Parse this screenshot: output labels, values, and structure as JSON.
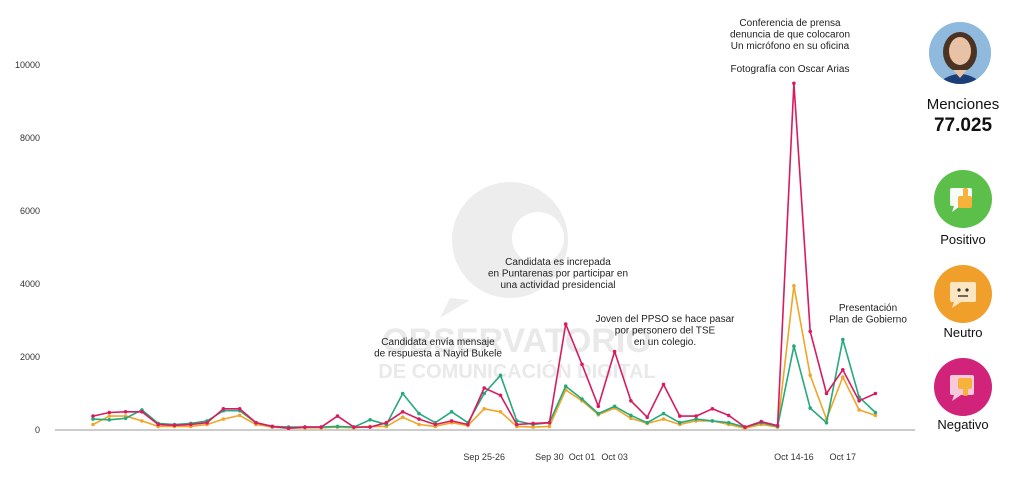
{
  "chart_data": {
    "type": "line",
    "ylim": [
      0,
      11000
    ],
    "yticks": [
      0,
      2000,
      4000,
      6000,
      8000,
      10000
    ],
    "x_labels": [
      {
        "label": "Sep 25-26",
        "index": 24
      },
      {
        "label": "Sep 30",
        "index": 28
      },
      {
        "label": "Oct 01",
        "index": 30
      },
      {
        "label": "Oct 03",
        "index": 32
      },
      {
        "label": "Oct 14-16",
        "index": 43
      },
      {
        "label": "Oct 17",
        "index": 46
      }
    ],
    "series": [
      {
        "color": "#d81b60",
        "values": [
          380,
          480,
          500,
          500,
          150,
          130,
          150,
          200,
          580,
          580,
          200,
          100,
          50,
          80,
          80,
          380,
          80,
          80,
          200,
          500,
          300,
          150,
          250,
          150,
          1150,
          950,
          150,
          180,
          200,
          2900,
          1800,
          650,
          2150,
          800,
          350,
          1250,
          380,
          380,
          580,
          400,
          80,
          230,
          120,
          9500,
          2700,
          1000,
          1650,
          800,
          1000
        ]
      },
      {
        "color": "#26a97b",
        "values": [
          300,
          280,
          320,
          550,
          180,
          150,
          180,
          250,
          530,
          530,
          200,
          100,
          80,
          80,
          80,
          100,
          80,
          280,
          150,
          1000,
          450,
          200,
          500,
          200,
          1000,
          1500,
          250,
          150,
          200,
          1200,
          850,
          450,
          650,
          400,
          200,
          450,
          200,
          300,
          250,
          200,
          80,
          200,
          100,
          2300,
          600,
          200,
          2480,
          900,
          480
        ]
      },
      {
        "color": "#f0a628",
        "values": [
          150,
          380,
          380,
          250,
          100,
          100,
          100,
          150,
          300,
          400,
          150,
          80,
          50,
          60,
          60,
          80,
          60,
          100,
          100,
          350,
          150,
          100,
          200,
          120,
          580,
          500,
          100,
          80,
          100,
          1100,
          800,
          420,
          600,
          320,
          180,
          300,
          150,
          250,
          250,
          150,
          50,
          150,
          80,
          3950,
          1500,
          300,
          1450,
          550,
          400
        ]
      }
    ],
    "annotations": [
      {
        "lines": [
          "Conferencia de prensa",
          "denuncia de que colocaron",
          "Un micrófono en su oficina",
          "",
          "Fotografía con Oscar Arias"
        ]
      },
      {
        "lines": [
          "Candidata es increpada",
          "en Puntarenas por participar en",
          "una actividad presidencial"
        ]
      },
      {
        "lines": [
          "Joven del PPSO se hace pasar",
          "por personero del TSE",
          "en un colegio."
        ]
      },
      {
        "lines": [
          "Candidata envía mensaje",
          "de respuesta a Nayid Bukele"
        ]
      },
      {
        "lines": [
          "Presentación",
          "Plan de Gobierno"
        ]
      }
    ]
  },
  "watermark": {
    "line1": "OBSERVATORIO",
    "line2": "DE COMUNICACIÓN DIGITAL"
  },
  "sidebar": {
    "mentions_label": "Menciones",
    "mentions_value": "77.025",
    "sentiments": [
      {
        "label": "Positivo",
        "color": "#5bbf4a",
        "icon": "thumbs-up-icon"
      },
      {
        "label": "Neutro",
        "color": "#f0a02a",
        "icon": "neutral-face-icon"
      },
      {
        "label": "Negativo",
        "color": "#d2237a",
        "icon": "thumbs-down-icon"
      }
    ]
  }
}
